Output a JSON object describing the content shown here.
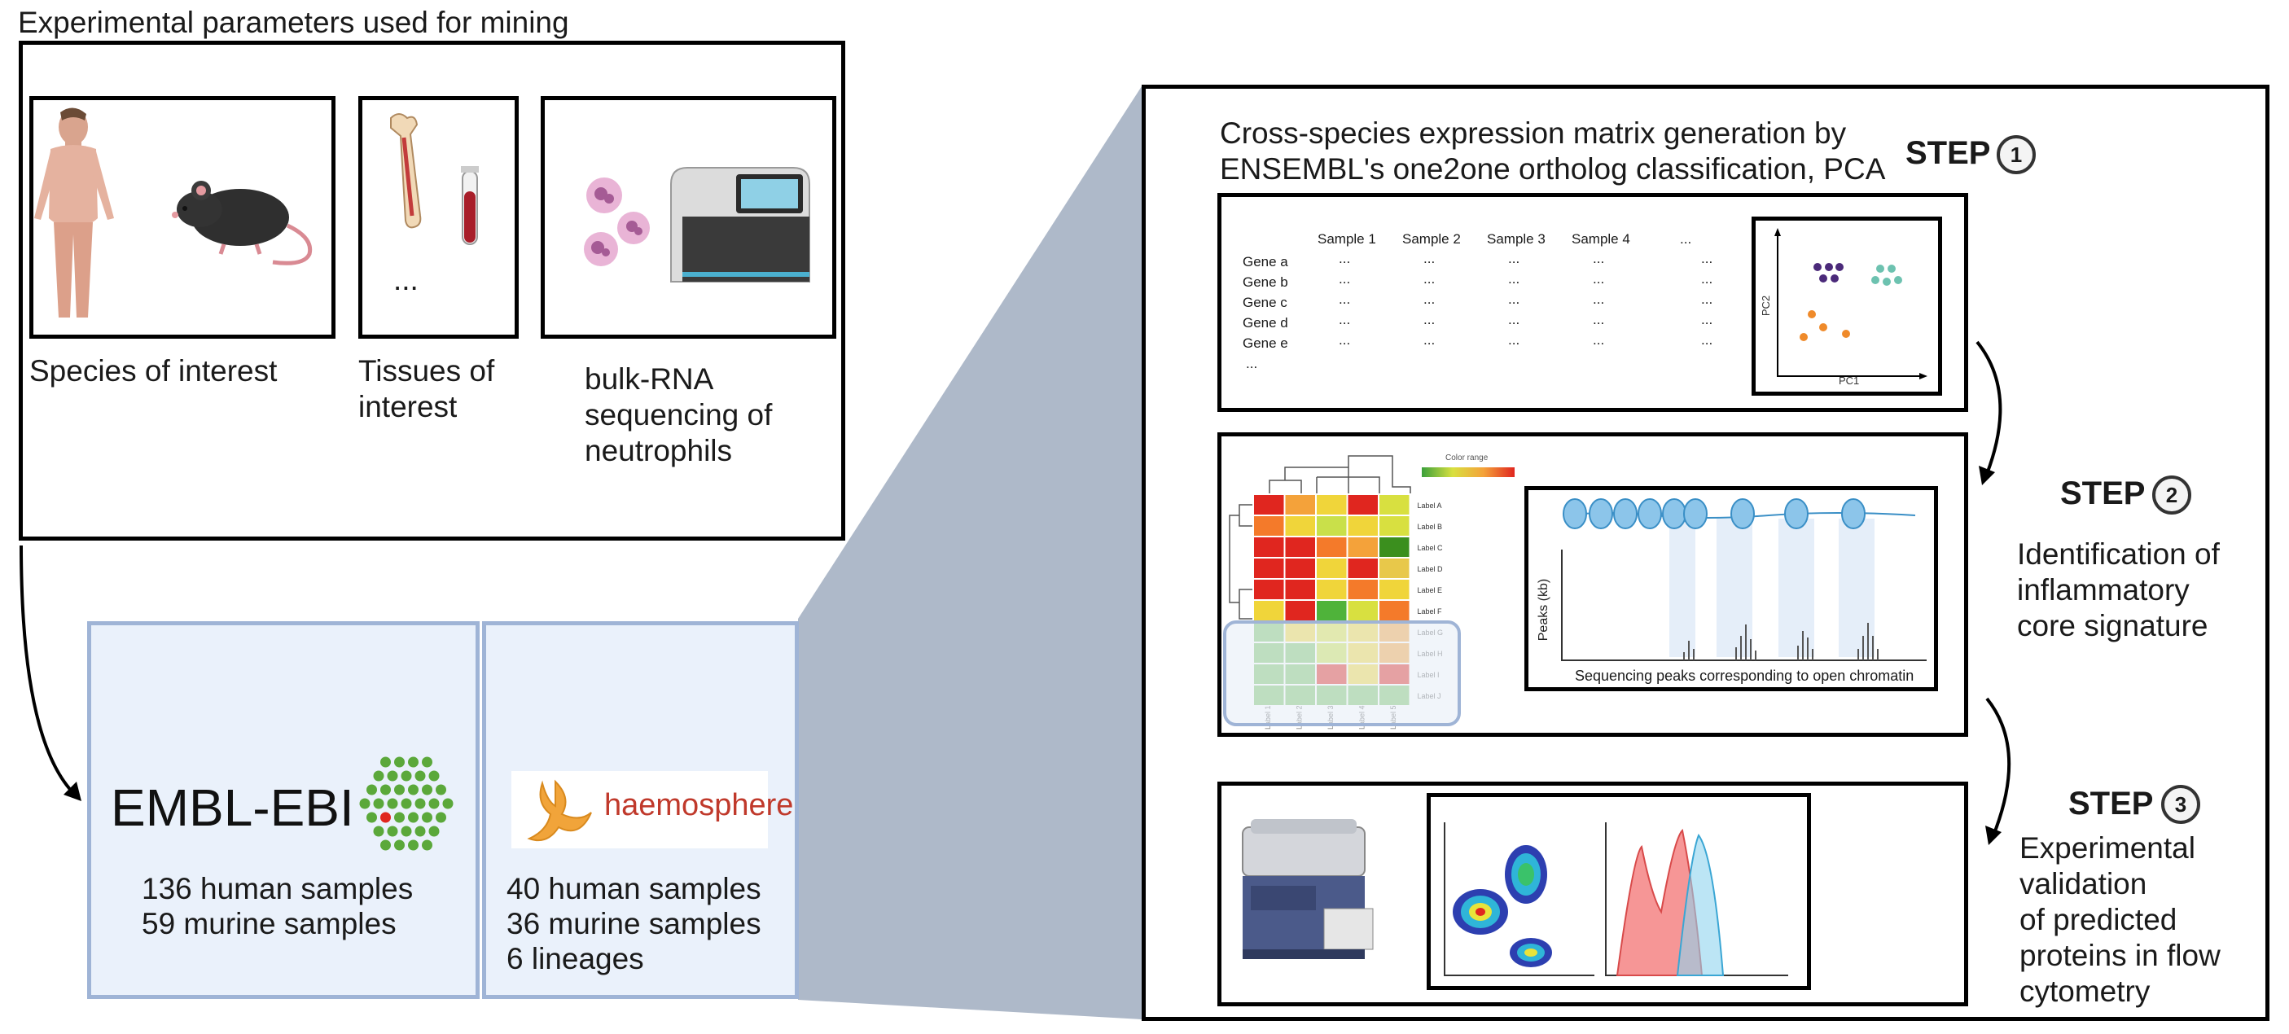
{
  "params": {
    "title": "Experimental parameters used for mining",
    "species_label": "Species of interest",
    "tissues_label": "Tissues of\ninterest",
    "tissues_ellipsis": "...",
    "sequencing_label": "bulk-RNA\nsequencing of\nneutrophils"
  },
  "sources": {
    "embl": {
      "logo_text": "EMBL-EBI",
      "line1": "136 human samples",
      "line2": "59 murine samples"
    },
    "haemosphere": {
      "logo_text": "haemosphere",
      "line1": "40 human samples",
      "line2": "36 murine samples",
      "line3": "6 lineages"
    }
  },
  "steps": {
    "step1_title": "Cross-species expression matrix generation by\nENSEMBL's one2one ortholog classification, PCA",
    "step_word": "STEP",
    "step1_num": "1",
    "step2_num": "2",
    "step3_num": "3",
    "step2_desc": "Identification of\ninflammatory\ncore signature",
    "step3_desc": "Experimental\nvalidation\nof predicted\nproteins in flow\ncytometry"
  },
  "matrix": {
    "columns": [
      "Sample 1",
      "Sample 2",
      "Sample 3",
      "Sample 4",
      "..."
    ],
    "rows": [
      "Gene a",
      "Gene b",
      "Gene c",
      "Gene d",
      "Gene e",
      "..."
    ],
    "cell": "..."
  },
  "pca": {
    "xlabel": "PC1",
    "ylabel": "PC2"
  },
  "heatmap": {
    "color_range_label": "Color range",
    "row_labels": [
      "Label A",
      "Label B",
      "Label C",
      "Label D",
      "Label E",
      "Label F",
      "Label G",
      "Label H",
      "Label I",
      "Label J"
    ],
    "col_labels": [
      "Label 1",
      "Label 2",
      "Label 3",
      "Label 4",
      "Label 5"
    ]
  },
  "atac": {
    "ylabel": "Peaks (kb)",
    "caption": "Sequencing peaks corresponding to open chromatin"
  },
  "colors": {
    "panel_fill": "#eaf1fb",
    "panel_border": "#9fb4d6",
    "zoom_fill": "#aeb9c9",
    "embl_green": "#5ba83a",
    "pca_purple": "#4b2a7a",
    "pca_teal": "#6dc2b0",
    "pca_orange": "#ef8a2a"
  }
}
